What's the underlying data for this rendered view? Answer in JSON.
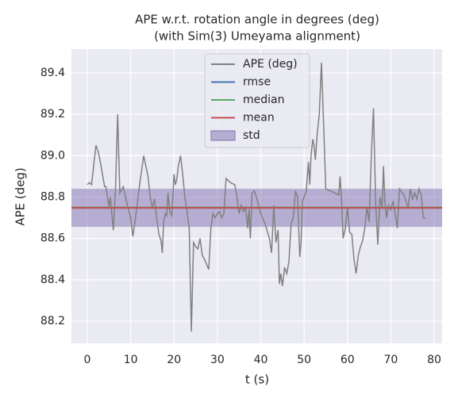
{
  "chart_data": {
    "type": "line",
    "title": "APE w.r.t. rotation angle in degrees (deg)",
    "subtitle": "(with Sim(3) Umeyama alignment)",
    "x_label": "t (s)",
    "y_label": "APE (deg)",
    "xlim": [
      -3.66,
      81.83
    ],
    "ylim": [
      88.093,
      89.515
    ],
    "xticks": [
      0,
      10,
      20,
      30,
      40,
      50,
      60,
      70,
      80
    ],
    "yticks": [
      88.2,
      88.4,
      88.6,
      88.8,
      {
        "value": 89,
        "label": "89.0"
      },
      89.2,
      89.4
    ],
    "grid": true,
    "legend": "upper center",
    "x": [
      0,
      0.5,
      1,
      1.5,
      2,
      2.5,
      3,
      3.5,
      4,
      4.3,
      4.6,
      5,
      5.3,
      6,
      6.5,
      7,
      7.5,
      8,
      8.3,
      9,
      10,
      10.5,
      11,
      12,
      13,
      14,
      14.5,
      15,
      15.5,
      16,
      16.5,
      17,
      17.3,
      17.6,
      18,
      18.3,
      18.6,
      19,
      19.5,
      20,
      20.3,
      20.6,
      21,
      21.5,
      22,
      22.5,
      23,
      23.5,
      24,
      24.5,
      25,
      25.5,
      26,
      26.5,
      27,
      28,
      28.5,
      29,
      29.5,
      30,
      30.5,
      31,
      31.5,
      32,
      33,
      34,
      34.5,
      35,
      35.5,
      36,
      36.5,
      37,
      37.3,
      37.6,
      38,
      38.5,
      39,
      40,
      41,
      42,
      42.5,
      43,
      43.5,
      44,
      44.3,
      44.6,
      45,
      45.5,
      46,
      46.5,
      47,
      47.5,
      48,
      48.5,
      49,
      49.3,
      49.6,
      50,
      50.5,
      51,
      51.3,
      51.6,
      52,
      52.3,
      52.6,
      53,
      53.5,
      54,
      54.5,
      55,
      56,
      57,
      58,
      58.3,
      58.6,
      59,
      59.5,
      60,
      60.5,
      61,
      61.5,
      62,
      62.5,
      63,
      63.5,
      64,
      64.5,
      65,
      65.5,
      66,
      66.5,
      67,
      67.5,
      68,
      68.3,
      68.6,
      69,
      69.5,
      70,
      70.5,
      71,
      71.5,
      72,
      73,
      73.5,
      74,
      74.5,
      75,
      75.5,
      76,
      76.5,
      77,
      77.5,
      78
    ],
    "series": [
      {
        "name": "APE (deg)",
        "color": "#808080",
        "values": [
          88.86,
          88.87,
          88.86,
          88.96,
          89.05,
          89.02,
          88.97,
          88.91,
          88.85,
          88.85,
          88.81,
          88.75,
          88.8,
          88.64,
          88.84,
          89.2,
          88.82,
          88.84,
          88.85,
          88.78,
          88.7,
          88.61,
          88.68,
          88.85,
          89.0,
          88.9,
          88.8,
          88.75,
          88.79,
          88.7,
          88.62,
          88.59,
          88.53,
          88.68,
          88.72,
          88.71,
          88.82,
          88.73,
          88.71,
          88.91,
          88.86,
          88.88,
          88.95,
          89.0,
          88.91,
          88.8,
          88.73,
          88.65,
          88.15,
          88.58,
          88.56,
          88.55,
          88.6,
          88.52,
          88.5,
          88.45,
          88.65,
          88.72,
          88.7,
          88.72,
          88.73,
          88.7,
          88.72,
          88.89,
          88.87,
          88.86,
          88.8,
          88.72,
          88.76,
          88.73,
          88.75,
          88.65,
          88.74,
          88.6,
          88.82,
          88.83,
          88.8,
          88.72,
          88.67,
          88.6,
          88.53,
          88.76,
          88.58,
          88.64,
          88.38,
          88.43,
          88.37,
          88.46,
          88.43,
          88.49,
          88.67,
          88.7,
          88.83,
          88.8,
          88.51,
          88.58,
          88.78,
          88.8,
          88.83,
          88.97,
          88.86,
          89.0,
          89.08,
          89.05,
          88.98,
          89.1,
          89.2,
          89.45,
          89.15,
          88.84,
          88.83,
          88.82,
          88.81,
          88.9,
          88.8,
          88.6,
          88.65,
          88.75,
          88.63,
          88.62,
          88.5,
          88.43,
          88.52,
          88.56,
          88.59,
          88.65,
          88.75,
          88.68,
          89.0,
          89.23,
          88.77,
          88.57,
          88.8,
          88.75,
          88.95,
          88.79,
          88.7,
          88.76,
          88.74,
          88.78,
          88.72,
          88.65,
          88.84,
          88.81,
          88.78,
          88.75,
          88.84,
          88.79,
          88.82,
          88.79,
          88.84,
          88.81,
          88.7,
          88.7
        ]
      }
    ],
    "lines": [
      {
        "name": "rmse",
        "color": "#4c72b0",
        "value": 88.748
      },
      {
        "name": "median",
        "color": "#55a868",
        "value": 88.75
      },
      {
        "name": "mean",
        "color": "#c44e52",
        "value": 88.748
      }
    ],
    "band": {
      "name": "std",
      "color": "#8172b2",
      "value": 0.092
    }
  }
}
